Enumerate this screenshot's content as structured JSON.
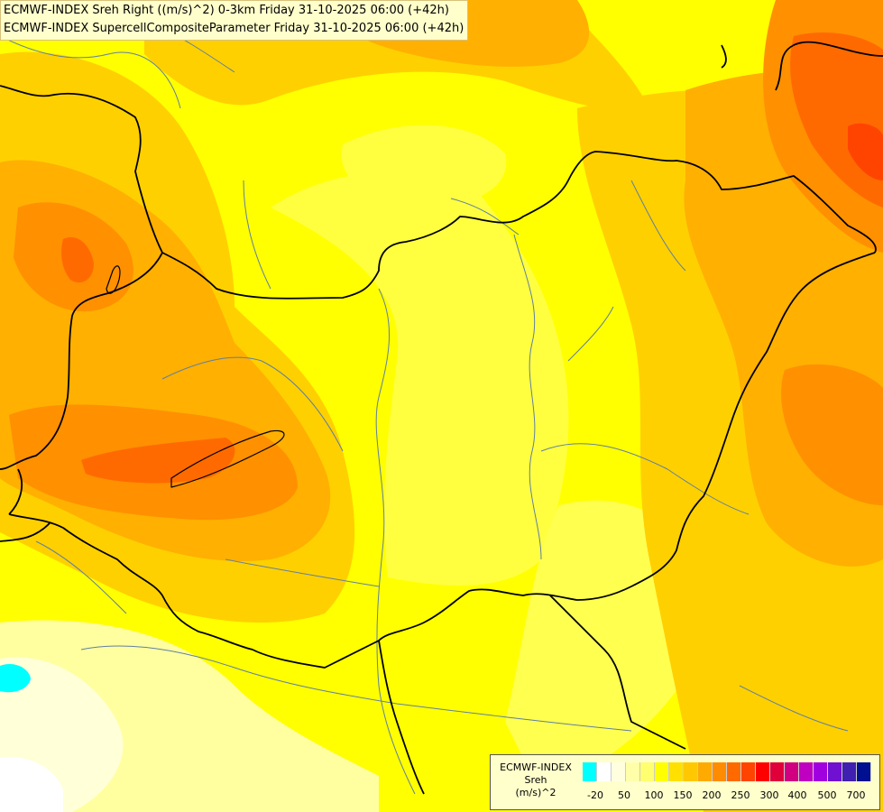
{
  "header": {
    "line1": "ECMWF-INDEX Sreh Right ((m/s)^2) 0-3km Friday 31-10-2025 06:00 (+42h)",
    "line2": "ECMWF-INDEX SupercellCompositeParameter Friday 31-10-2025 06:00 (+42h)"
  },
  "legend": {
    "source": "ECMWF-INDEX",
    "variable": "Sreh",
    "unit": "(m/s)^2",
    "colors": [
      "#00ffff",
      "#ffffff",
      "#ffffe0",
      "#ffffaa",
      "#ffff70",
      "#ffff00",
      "#ffe000",
      "#ffc800",
      "#ffaa00",
      "#ff8c00",
      "#ff6a00",
      "#ff4400",
      "#ff0000",
      "#e0003a",
      "#d00080",
      "#c000c0",
      "#a000e0",
      "#7010d0",
      "#4020b0",
      "#001090"
    ],
    "tick_labels": [
      "-20",
      "50",
      "100",
      "150",
      "200",
      "250",
      "300",
      "400",
      "500",
      "700"
    ]
  },
  "colors": {
    "border": "#000000",
    "rivers": "#5f7fa0"
  }
}
